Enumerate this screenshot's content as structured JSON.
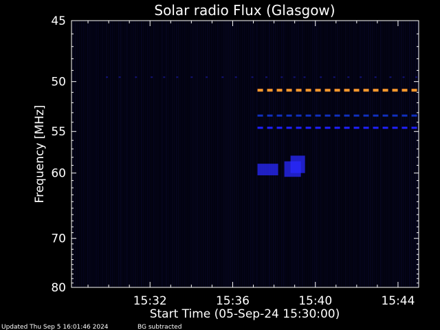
{
  "chart_data": {
    "type": "heatmap",
    "title": "Solar radio Flux (Glasgow)",
    "xlabel": "Start Time (05-Sep-24 15:30:00)",
    "ylabel": "Frequency [MHz]",
    "x_ticks": [
      "15:32",
      "15:36",
      "15:40",
      "15:44"
    ],
    "x_tick_minutes": [
      2,
      6,
      10,
      14
    ],
    "xlim_minutes": [
      -1.8,
      15.0
    ],
    "y_ticks": [
      45,
      50,
      55,
      60,
      70,
      80
    ],
    "ylim": [
      45,
      80
    ],
    "y_scale": "reciprocal",
    "interference_bands": [
      {
        "freq_mhz": 50.8,
        "start_minute": 7.2,
        "end_minute": 15.0,
        "color": "#ff9a2e"
      },
      {
        "freq_mhz": 53.3,
        "start_minute": 7.2,
        "end_minute": 15.0,
        "color": "#1030c0"
      },
      {
        "freq_mhz": 54.6,
        "start_minute": 7.2,
        "end_minute": 15.0,
        "color": "#2020ff"
      }
    ],
    "bright_patches": [
      {
        "minute_start": 7.2,
        "minute_end": 8.2,
        "freq_low": 58.8,
        "freq_high": 60.3
      },
      {
        "minute_start": 8.5,
        "minute_end": 9.3,
        "freq_low": 58.5,
        "freq_high": 60.5
      },
      {
        "minute_start": 8.8,
        "minute_end": 9.5,
        "freq_low": 57.8,
        "freq_high": 60.0
      }
    ]
  },
  "footer": {
    "updated": "Updated Thu Sep  5 16:01:46 2024",
    "note": "BG subtracted"
  },
  "colors": {
    "background": "#000000",
    "plot_background": "#02020e",
    "axis": "#ffffff"
  }
}
